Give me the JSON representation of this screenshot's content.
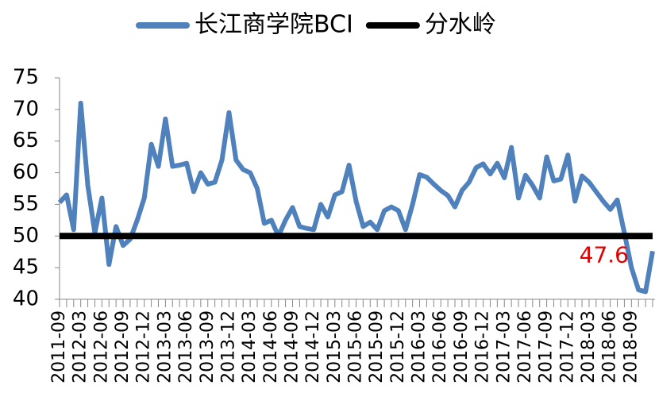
{
  "chart_data": {
    "type": "line",
    "categories": [
      "2011-09",
      null,
      null,
      "2012-03",
      null,
      null,
      "2012-06",
      null,
      null,
      "2012-09",
      null,
      null,
      "2012-12",
      null,
      null,
      "2013-03",
      null,
      null,
      "2013-06",
      null,
      null,
      "2013-09",
      null,
      null,
      "2013-12",
      null,
      null,
      "2014-03",
      null,
      null,
      "2014-06",
      null,
      null,
      "2014-09",
      null,
      null,
      "2014-12",
      null,
      null,
      "2015-03",
      null,
      null,
      "2015-06",
      null,
      null,
      "2015-09",
      null,
      null,
      "2015-12",
      null,
      null,
      "2016-03",
      null,
      null,
      "2016-06",
      null,
      null,
      "2016-09",
      null,
      null,
      "2016-12",
      null,
      null,
      "2017-03",
      null,
      null,
      "2017-06",
      null,
      null,
      "2017-09",
      null,
      null,
      "2017-12",
      null,
      null,
      "2018-03",
      null,
      null,
      "2018-06",
      null,
      null,
      "2018-09",
      null,
      null,
      null
    ],
    "series": [
      {
        "name": "长江商学院BCI",
        "color": "#4f81bd",
        "values": [
          55.3,
          56.5,
          51,
          71,
          58,
          50.5,
          56,
          45.5,
          51.5,
          48.5,
          49.5,
          52.5,
          56,
          64.5,
          61,
          68.5,
          61,
          61.2,
          61.5,
          57,
          60,
          58.2,
          58.5,
          62,
          69.5,
          62,
          60.5,
          60,
          57.5,
          52,
          52.5,
          50,
          52.5,
          54.5,
          51.5,
          51.2,
          51,
          55,
          53,
          56.5,
          57,
          61.2,
          55.5,
          51.5,
          52.2,
          51,
          54,
          54.6,
          54,
          51,
          55,
          59.7,
          59.3,
          58.2,
          57.2,
          56.4,
          54.6,
          57.2,
          58.5,
          60.8,
          61.4,
          59.8,
          61.5,
          59.2,
          64,
          56,
          59.6,
          58,
          56,
          62.5,
          58.7,
          59,
          62.8,
          55.5,
          59.5,
          58.5,
          57,
          55.5,
          54.2,
          55.7,
          50.5,
          45,
          41.5,
          41.2,
          47.6
        ]
      },
      {
        "name": "分水岭",
        "color": "#000000",
        "values": [
          50,
          50,
          50,
          50,
          50,
          50,
          50,
          50,
          50,
          50,
          50,
          50,
          50,
          50,
          50,
          50,
          50,
          50,
          50,
          50,
          50,
          50,
          50,
          50,
          50,
          50,
          50,
          50,
          50,
          50,
          50,
          50,
          50,
          50,
          50,
          50,
          50,
          50,
          50,
          50,
          50,
          50,
          50,
          50,
          50,
          50,
          50,
          50,
          50,
          50,
          50,
          50,
          50,
          50,
          50,
          50,
          50,
          50,
          50,
          50,
          50,
          50,
          50,
          50,
          50,
          50,
          50,
          50,
          50,
          50,
          50,
          50,
          50,
          50,
          50,
          50,
          50,
          50,
          50,
          50,
          50,
          50,
          50,
          50,
          50
        ]
      }
    ],
    "ylim": [
      40,
      75
    ],
    "yticks": [
      40,
      45,
      50,
      55,
      60,
      65,
      70,
      75
    ],
    "label_color": "#e00000",
    "legend": "top"
  }
}
